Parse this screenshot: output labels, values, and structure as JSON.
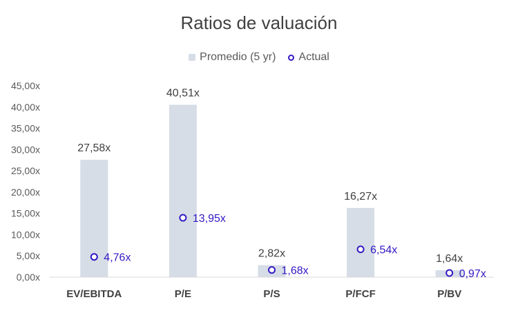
{
  "chart_data": {
    "type": "bar",
    "title": "Ratios de valuación",
    "categories": [
      "EV/EBITDA",
      "P/E",
      "P/S",
      "P/FCF",
      "P/BV"
    ],
    "series": [
      {
        "name": "Promedio (5 yr)",
        "kind": "bar",
        "color": "#d6dde6",
        "values": [
          27.58,
          40.51,
          2.82,
          16.27,
          1.64
        ],
        "labels": [
          "27,58x",
          "40,51x",
          "2,82x",
          "16,27x",
          "1,64x"
        ]
      },
      {
        "name": "Actual",
        "kind": "marker",
        "color": "#3318c4",
        "values": [
          4.76,
          13.95,
          1.68,
          6.54,
          0.97
        ],
        "labels": [
          "4,76x",
          "13,95x",
          "1,68x",
          "6,54x",
          "0,97x"
        ]
      }
    ],
    "ylim": [
      0,
      45
    ],
    "yticks": [
      0,
      5,
      10,
      15,
      20,
      25,
      30,
      35,
      40,
      45
    ],
    "ytick_labels": [
      "0,00x",
      "5,00x",
      "10,00x",
      "15,00x",
      "20,00x",
      "25,00x",
      "30,00x",
      "35,00x",
      "40,00x",
      "45,00x"
    ],
    "xlabel": "",
    "ylabel": "",
    "legend_position": "top-center",
    "grid": false,
    "axis_color": "#d9d9d9"
  }
}
